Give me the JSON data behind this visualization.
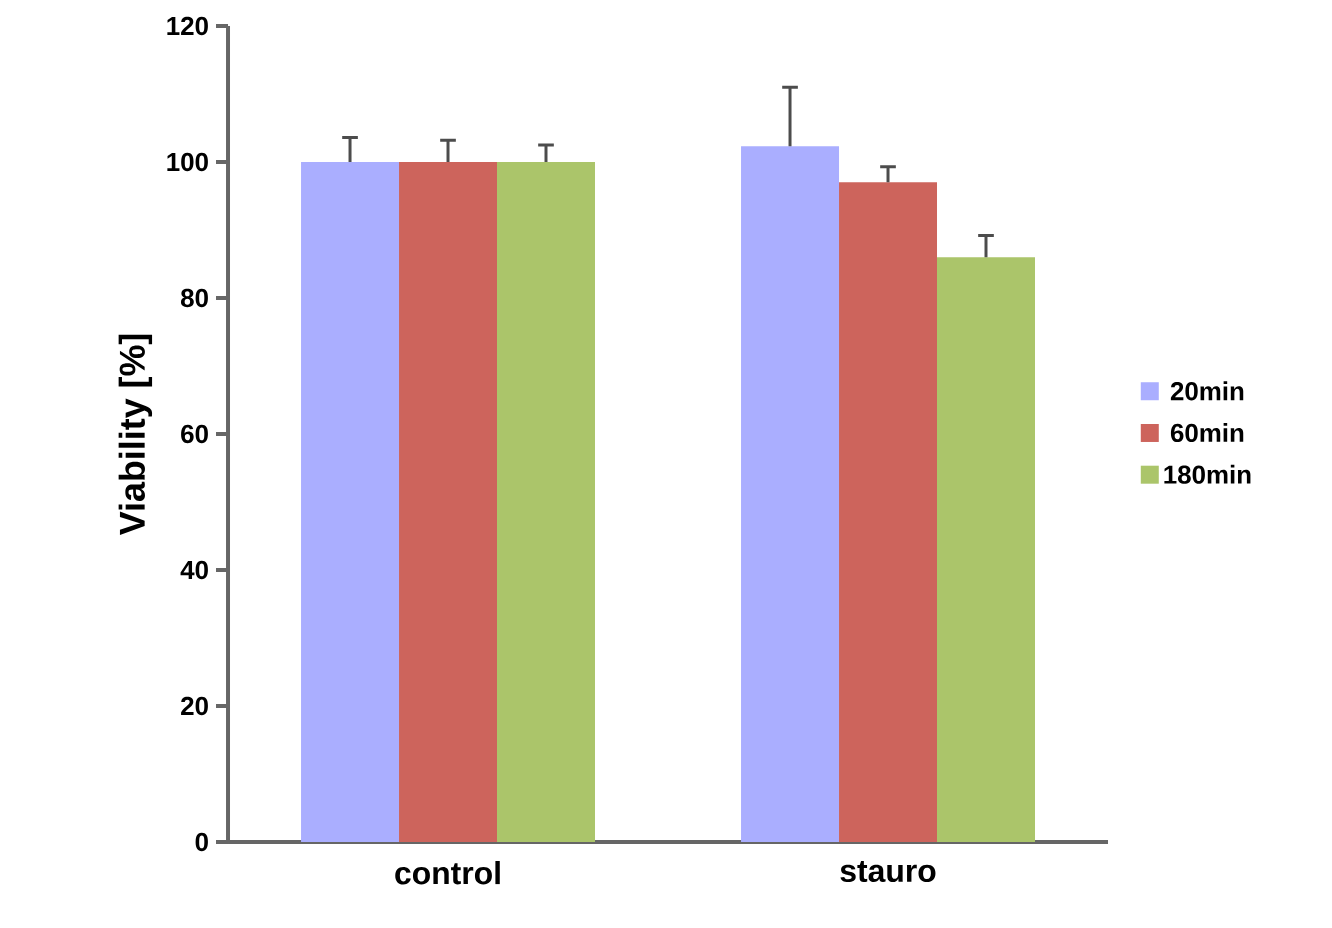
{
  "chart_data": {
    "type": "bar",
    "ylabel": "Viability [%]",
    "categories": [
      "control",
      "stauro"
    ],
    "series": [
      {
        "name": "20min",
        "color": "#aaaeff",
        "values": [
          100,
          102.3
        ],
        "errors": [
          [
            100,
            103.6
          ],
          [
            102.3,
            111.0
          ]
        ]
      },
      {
        "name": "60min",
        "color": "#cd645c",
        "values": [
          100,
          97.0
        ],
        "errors": [
          [
            100,
            103.2
          ],
          [
            97.0,
            99.3
          ]
        ]
      },
      {
        "name": "180min",
        "color": "#abc56a",
        "values": [
          100,
          86.0
        ],
        "errors": [
          [
            100,
            102.5
          ],
          [
            86.0,
            89.2
          ]
        ]
      }
    ],
    "ylim": [
      0,
      120
    ],
    "yticks": [
      0,
      20,
      40,
      60,
      80,
      100,
      120
    ],
    "grid": false,
    "legend": "right"
  }
}
